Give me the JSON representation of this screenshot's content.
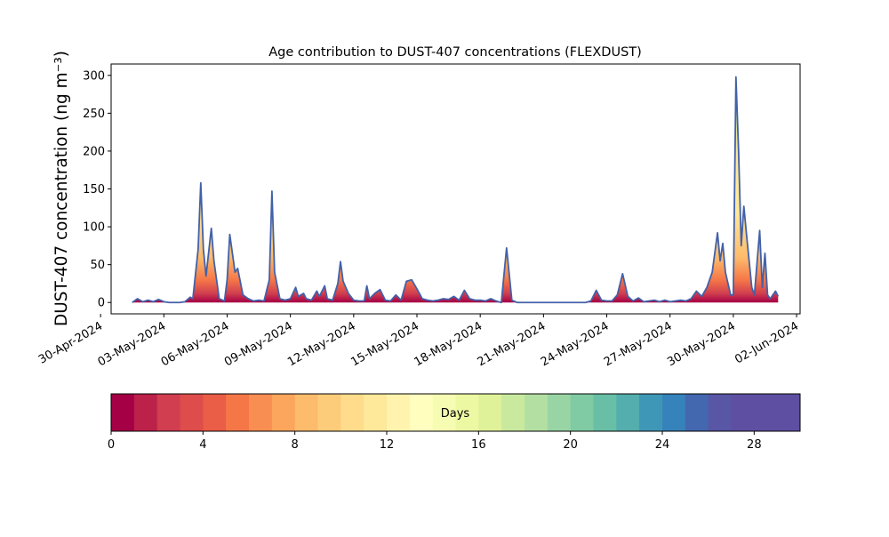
{
  "chart_data": {
    "type": "area",
    "title": "Age contribution to DUST-407 concentrations (FLEXDUST)",
    "ylabel": "DUST-407 concentration (ng m⁻³)",
    "xlabel": "",
    "x_range": [
      "2024-04-30T12:00",
      "2024-06-02T04:00"
    ],
    "ylim": [
      -15,
      315
    ],
    "y_ticks": [
      0,
      50,
      100,
      150,
      200,
      250,
      300
    ],
    "x_ticks": [
      {
        "date": "2024-04-30",
        "label": "30-Apr-2024"
      },
      {
        "date": "2024-05-03",
        "label": "03-May-2024"
      },
      {
        "date": "2024-05-06",
        "label": "06-May-2024"
      },
      {
        "date": "2024-05-09",
        "label": "09-May-2024"
      },
      {
        "date": "2024-05-12",
        "label": "12-May-2024"
      },
      {
        "date": "2024-05-15",
        "label": "15-May-2024"
      },
      {
        "date": "2024-05-18",
        "label": "18-May-2024"
      },
      {
        "date": "2024-05-21",
        "label": "21-May-2024"
      },
      {
        "date": "2024-05-24",
        "label": "24-May-2024"
      },
      {
        "date": "2024-05-27",
        "label": "27-May-2024"
      },
      {
        "date": "2024-05-30",
        "label": "30-May-2024"
      },
      {
        "date": "2024-06-02",
        "label": "02-Jun-2024"
      }
    ],
    "grid": false,
    "series": [
      {
        "name": "",
        "line_color": "#4361a8",
        "points": [
          [
            "2024-05-01T12:00",
            0
          ],
          [
            "2024-05-01T18:00",
            5
          ],
          [
            "2024-05-02T00:00",
            1
          ],
          [
            "2024-05-02T06:00",
            3
          ],
          [
            "2024-05-02T12:00",
            1
          ],
          [
            "2024-05-02T18:00",
            4
          ],
          [
            "2024-05-03T00:00",
            1
          ],
          [
            "2024-05-03T06:00",
            0
          ],
          [
            "2024-05-03T12:00",
            0
          ],
          [
            "2024-05-03T18:00",
            0
          ],
          [
            "2024-05-04T00:00",
            1
          ],
          [
            "2024-05-04T06:00",
            7
          ],
          [
            "2024-05-04T09:00",
            5
          ],
          [
            "2024-05-04T15:00",
            70
          ],
          [
            "2024-05-04T18:00",
            158
          ],
          [
            "2024-05-04T21:00",
            70
          ],
          [
            "2024-05-05T00:00",
            35
          ],
          [
            "2024-05-05T06:00",
            98
          ],
          [
            "2024-05-05T09:00",
            55
          ],
          [
            "2024-05-05T15:00",
            5
          ],
          [
            "2024-05-05T21:00",
            2
          ],
          [
            "2024-05-06T00:00",
            30
          ],
          [
            "2024-05-06T03:00",
            90
          ],
          [
            "2024-05-06T06:00",
            65
          ],
          [
            "2024-05-06T09:00",
            40
          ],
          [
            "2024-05-06T12:00",
            45
          ],
          [
            "2024-05-06T18:00",
            10
          ],
          [
            "2024-05-07T00:00",
            5
          ],
          [
            "2024-05-07T06:00",
            2
          ],
          [
            "2024-05-07T12:00",
            3
          ],
          [
            "2024-05-07T18:00",
            2
          ],
          [
            "2024-05-08T00:00",
            30
          ],
          [
            "2024-05-08T03:00",
            147
          ],
          [
            "2024-05-08T06:00",
            40
          ],
          [
            "2024-05-08T12:00",
            5
          ],
          [
            "2024-05-08T18:00",
            3
          ],
          [
            "2024-05-09T00:00",
            5
          ],
          [
            "2024-05-09T06:00",
            20
          ],
          [
            "2024-05-09T09:00",
            8
          ],
          [
            "2024-05-09T15:00",
            12
          ],
          [
            "2024-05-09T18:00",
            5
          ],
          [
            "2024-05-10T00:00",
            3
          ],
          [
            "2024-05-10T06:00",
            15
          ],
          [
            "2024-05-10T09:00",
            8
          ],
          [
            "2024-05-10T15:00",
            22
          ],
          [
            "2024-05-10T18:00",
            5
          ],
          [
            "2024-05-11T00:00",
            3
          ],
          [
            "2024-05-11T06:00",
            25
          ],
          [
            "2024-05-11T09:00",
            54
          ],
          [
            "2024-05-11T12:00",
            28
          ],
          [
            "2024-05-11T18:00",
            12
          ],
          [
            "2024-05-12T00:00",
            3
          ],
          [
            "2024-05-12T06:00",
            2
          ],
          [
            "2024-05-12T12:00",
            2
          ],
          [
            "2024-05-12T15:00",
            22
          ],
          [
            "2024-05-12T18:00",
            5
          ],
          [
            "2024-05-13T00:00",
            12
          ],
          [
            "2024-05-13T06:00",
            17
          ],
          [
            "2024-05-13T12:00",
            3
          ],
          [
            "2024-05-13T18:00",
            2
          ],
          [
            "2024-05-14T00:00",
            10
          ],
          [
            "2024-05-14T06:00",
            3
          ],
          [
            "2024-05-14T12:00",
            28
          ],
          [
            "2024-05-14T18:00",
            30
          ],
          [
            "2024-05-15T00:00",
            18
          ],
          [
            "2024-05-15T06:00",
            5
          ],
          [
            "2024-05-15T12:00",
            3
          ],
          [
            "2024-05-15T18:00",
            2
          ],
          [
            "2024-05-16T00:00",
            3
          ],
          [
            "2024-05-16T06:00",
            5
          ],
          [
            "2024-05-16T12:00",
            4
          ],
          [
            "2024-05-16T18:00",
            8
          ],
          [
            "2024-05-17T00:00",
            3
          ],
          [
            "2024-05-17T06:00",
            16
          ],
          [
            "2024-05-17T12:00",
            5
          ],
          [
            "2024-05-17T18:00",
            3
          ],
          [
            "2024-05-18T00:00",
            3
          ],
          [
            "2024-05-18T06:00",
            2
          ],
          [
            "2024-05-18T12:00",
            5
          ],
          [
            "2024-05-18T18:00",
            2
          ],
          [
            "2024-05-19T00:00",
            0
          ],
          [
            "2024-05-19T06:00",
            72
          ],
          [
            "2024-05-19T12:00",
            3
          ],
          [
            "2024-05-19T18:00",
            0
          ],
          [
            "2024-05-20T00:00",
            0
          ],
          [
            "2024-05-20T12:00",
            0
          ],
          [
            "2024-05-21T00:00",
            0
          ],
          [
            "2024-05-21T12:00",
            0
          ],
          [
            "2024-05-22T00:00",
            0
          ],
          [
            "2024-05-22T12:00",
            0
          ],
          [
            "2024-05-23T00:00",
            0
          ],
          [
            "2024-05-23T06:00",
            2
          ],
          [
            "2024-05-23T12:00",
            16
          ],
          [
            "2024-05-23T18:00",
            3
          ],
          [
            "2024-05-24T00:00",
            2
          ],
          [
            "2024-05-24T06:00",
            2
          ],
          [
            "2024-05-24T12:00",
            10
          ],
          [
            "2024-05-24T18:00",
            38
          ],
          [
            "2024-05-25T00:00",
            8
          ],
          [
            "2024-05-25T06:00",
            2
          ],
          [
            "2024-05-25T12:00",
            6
          ],
          [
            "2024-05-25T18:00",
            1
          ],
          [
            "2024-05-26T00:00",
            2
          ],
          [
            "2024-05-26T06:00",
            3
          ],
          [
            "2024-05-26T12:00",
            1
          ],
          [
            "2024-05-26T18:00",
            3
          ],
          [
            "2024-05-27T00:00",
            1
          ],
          [
            "2024-05-27T06:00",
            2
          ],
          [
            "2024-05-27T12:00",
            3
          ],
          [
            "2024-05-27T18:00",
            2
          ],
          [
            "2024-05-28T00:00",
            5
          ],
          [
            "2024-05-28T06:00",
            15
          ],
          [
            "2024-05-28T12:00",
            8
          ],
          [
            "2024-05-28T18:00",
            20
          ],
          [
            "2024-05-29T00:00",
            40
          ],
          [
            "2024-05-29T06:00",
            92
          ],
          [
            "2024-05-29T09:00",
            55
          ],
          [
            "2024-05-29T12:00",
            78
          ],
          [
            "2024-05-29T15:00",
            40
          ],
          [
            "2024-05-29T21:00",
            10
          ],
          [
            "2024-05-30T00:00",
            10
          ],
          [
            "2024-05-30T03:00",
            298
          ],
          [
            "2024-05-30T06:00",
            200
          ],
          [
            "2024-05-30T09:00",
            75
          ],
          [
            "2024-05-30T12:00",
            127
          ],
          [
            "2024-05-30T15:00",
            90
          ],
          [
            "2024-05-30T21:00",
            20
          ],
          [
            "2024-05-31T00:00",
            10
          ],
          [
            "2024-05-31T06:00",
            95
          ],
          [
            "2024-05-31T09:00",
            20
          ],
          [
            "2024-05-31T12:00",
            65
          ],
          [
            "2024-05-31T15:00",
            10
          ],
          [
            "2024-05-31T18:00",
            5
          ],
          [
            "2024-06-01T00:00",
            15
          ],
          [
            "2024-06-01T03:00",
            8
          ]
        ]
      }
    ],
    "colorbar": {
      "label": "Days",
      "range": [
        0,
        30
      ],
      "bins": 30,
      "colormap": "Spectral",
      "ticks": [
        0,
        4,
        8,
        12,
        16,
        20,
        24,
        28
      ],
      "colors": [
        "#a50045",
        "#bb2149",
        "#d03e4f",
        "#de4c4b",
        "#ea5d46",
        "#f57748",
        "#f98e52",
        "#fca55d",
        "#fdbb6c",
        "#fdcc7a",
        "#fedc8c",
        "#fee89a",
        "#fff3ad",
        "#fffebe",
        "#f7fcb3",
        "#edf8a3",
        "#dff299",
        "#c9e99e",
        "#b3e0a2",
        "#99d5a4",
        "#80cba4",
        "#69bfa5",
        "#53aead",
        "#3f97b7",
        "#3682ba",
        "#4468af",
        "#5856a5",
        "#5e4fa2",
        "#5e4fa2",
        "#5e4fa2"
      ]
    },
    "area_stops": [
      {
        "offset": 0,
        "color": "#a50045"
      },
      {
        "offset": 0.04,
        "color": "#d03e4f"
      },
      {
        "offset": 0.1,
        "color": "#f57748"
      },
      {
        "offset": 0.2,
        "color": "#fdbb6c"
      },
      {
        "offset": 0.4,
        "color": "#fee89a"
      },
      {
        "offset": 0.65,
        "color": "#fee89a"
      },
      {
        "offset": 0.85,
        "color": "#c9e99e"
      },
      {
        "offset": 0.95,
        "color": "#80cba4"
      },
      {
        "offset": 1,
        "color": "#53aead"
      }
    ]
  }
}
